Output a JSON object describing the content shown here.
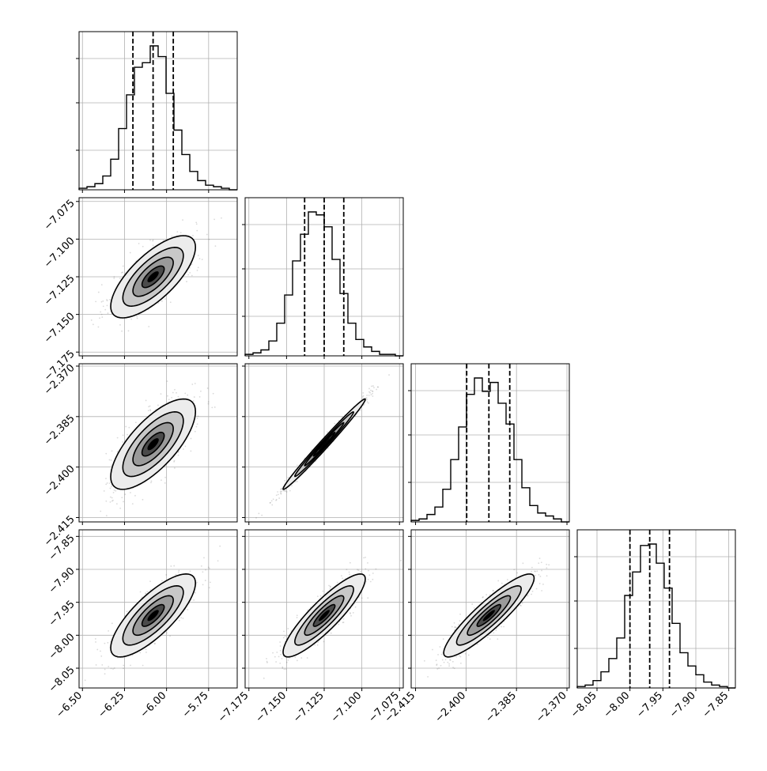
{
  "chart_data": {
    "type": "corner",
    "n_params": 4,
    "grid": true,
    "params": [
      {
        "range": [
          -6.52,
          -5.58
        ],
        "ticks": [
          -6.5,
          -6.25,
          -6.0,
          -5.75
        ],
        "tick_labels": [
          "−6.50",
          "−6.25",
          "−6.00",
          "−5.75"
        ],
        "quantiles": [
          -6.2,
          -6.08,
          -5.96
        ],
        "histogram": [
          1,
          2,
          4,
          9,
          20,
          40,
          62,
          80,
          83,
          94,
          87,
          63,
          39,
          23,
          12,
          6,
          3,
          2,
          1,
          0
        ]
      },
      {
        "range": [
          -7.1775,
          -7.0725
        ],
        "ticks": [
          -7.175,
          -7.15,
          -7.125,
          -7.1,
          -7.075
        ],
        "tick_labels": [
          "−7.175",
          "−7.150",
          "−7.125",
          "−7.100",
          "−7.075"
        ],
        "quantiles": [
          -7.138,
          -7.125,
          -7.112
        ],
        "histogram": [
          1,
          2,
          4,
          10,
          22,
          41,
          64,
          82,
          97,
          95,
          87,
          65,
          42,
          22,
          11,
          6,
          3,
          1,
          1,
          0
        ]
      },
      {
        "range": [
          -2.4163,
          -2.3693
        ],
        "ticks": [
          -2.415,
          -2.4,
          -2.385,
          -2.37
        ],
        "tick_labels": [
          "−2.415",
          "−2.400",
          "−2.385",
          "−2.370"
        ],
        "quantiles": [
          -2.3998,
          -2.3932,
          -2.387
        ],
        "histogram": [
          1,
          2,
          5,
          10,
          22,
          42,
          64,
          86,
          97,
          88,
          94,
          80,
          66,
          42,
          23,
          11,
          6,
          4,
          2,
          0
        ]
      },
      {
        "range": [
          -8.08,
          -7.84
        ],
        "ticks": [
          -8.05,
          -8.0,
          -7.95,
          -7.9,
          -7.85
        ],
        "tick_labels": [
          "−8.05",
          "−8.00",
          "−7.95",
          "−7.90",
          "−7.85"
        ],
        "quantiles": [
          -8.0,
          -7.97,
          -7.94
        ],
        "histogram": [
          1,
          2,
          5,
          11,
          20,
          34,
          63,
          79,
          97,
          98,
          85,
          68,
          44,
          24,
          15,
          9,
          4,
          2,
          1,
          0
        ]
      }
    ],
    "pairs": [
      {
        "x": 0,
        "y": 1,
        "rho": 0.72
      },
      {
        "x": 0,
        "y": 2,
        "rho": 0.72
      },
      {
        "x": 0,
        "y": 3,
        "rho": 0.78
      },
      {
        "x": 1,
        "y": 2,
        "rho": 0.99
      },
      {
        "x": 1,
        "y": 3,
        "rho": 0.88
      },
      {
        "x": 2,
        "y": 3,
        "rho": 0.9
      }
    ]
  }
}
